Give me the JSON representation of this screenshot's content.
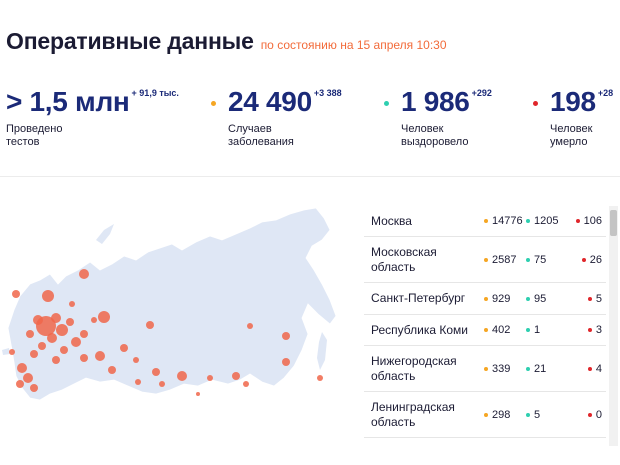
{
  "header": {
    "title": "Оперативные данные",
    "as_of": "по состоянию на 15 апреля 10:30"
  },
  "stats": {
    "tests": {
      "value": "> 1,5 млн",
      "delta": "+ 91,9 тыс.",
      "label": "Проведено\nтестов"
    },
    "cases": {
      "value": "24 490",
      "delta": "+3 388",
      "label": "Случаев\nзаболевания",
      "dot_color": "#f5a623"
    },
    "recovered": {
      "value": "1 986",
      "delta": "+292",
      "label": "Человек\nвыздоровело",
      "dot_color": "#2ecfb0"
    },
    "deaths": {
      "value": "198",
      "delta": "+28",
      "label": "Человек\nумерло",
      "dot_color": "#e0262b"
    }
  },
  "colors": {
    "accent_orange": "#f26b3a",
    "value_blue": "#1b2a78",
    "map_fill": "#dfe7f5",
    "map_marker": "#f0664a"
  },
  "regions": [
    {
      "name": "Москва",
      "cases": "14776",
      "recovered": "1205",
      "deaths": "106"
    },
    {
      "name": "Московская\nобласть",
      "cases": "2587",
      "recovered": "75",
      "deaths": "26"
    },
    {
      "name": "Санкт-Петербург",
      "cases": "929",
      "recovered": "95",
      "deaths": "5"
    },
    {
      "name": "Республика Коми",
      "cases": "402",
      "recovered": "1",
      "deaths": "3"
    },
    {
      "name": "Нижегородская\nобласть",
      "cases": "339",
      "recovered": "21",
      "deaths": "4"
    },
    {
      "name": "Ленинградская\nобласть",
      "cases": "298",
      "recovered": "5",
      "deaths": "0"
    }
  ]
}
